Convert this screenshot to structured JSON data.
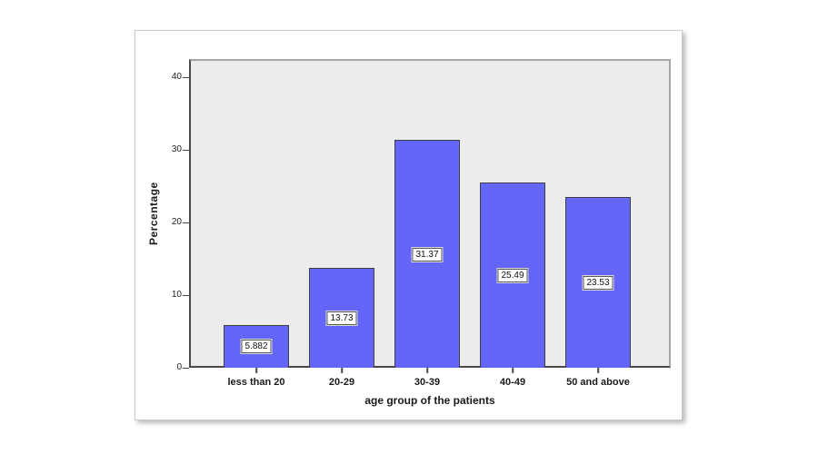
{
  "chart_data": {
    "type": "bar",
    "title": "",
    "categories": [
      "less than 20",
      "20-29",
      "30-39",
      "40-49",
      "50 and above"
    ],
    "values": [
      5.882,
      13.73,
      31.37,
      25.49,
      23.53
    ],
    "value_labels": [
      "5.882",
      "13.73",
      "31.37",
      "25.49",
      "23.53"
    ],
    "xlabel": "age group of the patients",
    "ylabel": "Percentage",
    "ylim": [
      0,
      42.5
    ],
    "yticks": [
      0,
      10,
      20,
      30,
      40
    ],
    "grid": false,
    "legend": null,
    "colors": {
      "bar_fill": "#6466FA",
      "bar_border": "#3F3F3F",
      "plot_background": "#ECECEC",
      "frame": "#A6A6A6",
      "axis_line": "#4A4A4A",
      "value_label_background": "#FFFFFF",
      "value_label_border": "#5A5A5A",
      "card_background": "#FFFFFF",
      "text": "#1A1A1A"
    }
  }
}
